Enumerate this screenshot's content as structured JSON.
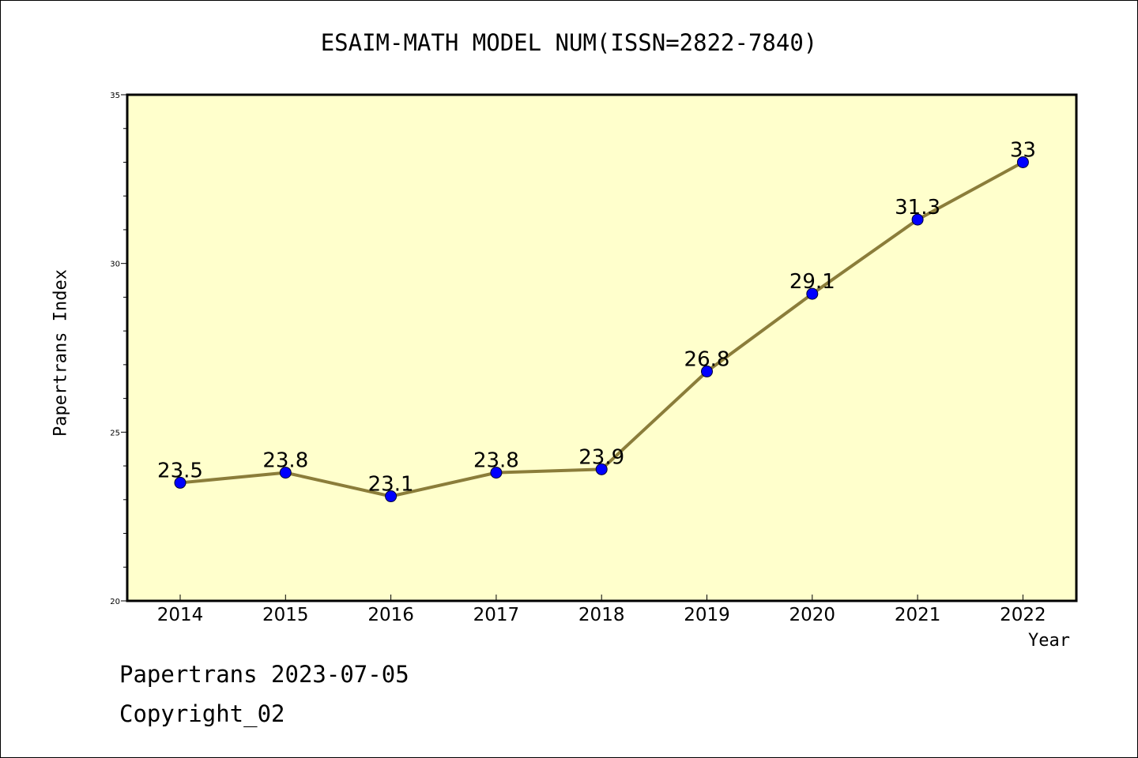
{
  "chart_data": {
    "type": "line",
    "title": "ESAIM-MATH MODEL NUM(ISSN=2822-7840)",
    "xlabel": "Year",
    "ylabel": "Papertrans Index",
    "categories": [
      "2014",
      "2015",
      "2016",
      "2017",
      "2018",
      "2019",
      "2020",
      "2021",
      "2022"
    ],
    "values": [
      23.5,
      23.8,
      23.1,
      23.8,
      23.9,
      26.8,
      29.1,
      31.3,
      33
    ],
    "data_labels": [
      "23.5",
      "23.8",
      "23.1",
      "23.8",
      "23.9",
      "26.8",
      "29.1",
      "31.3",
      "33"
    ],
    "ylim": [
      20,
      35
    ],
    "yticks": [
      "20",
      "25",
      "30",
      "35"
    ],
    "grid": false,
    "colors": {
      "plot_background": "#ffffcc",
      "line": "#8b7d3a",
      "marker": "#0000ff"
    }
  },
  "footer": {
    "line1": "Papertrans 2023-07-05",
    "line2": "Copyright_02"
  }
}
